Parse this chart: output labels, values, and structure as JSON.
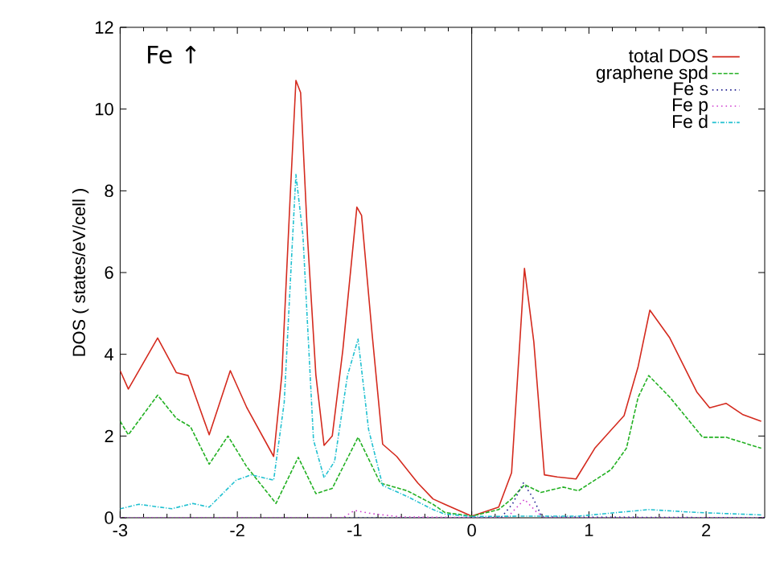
{
  "chart_data": {
    "type": "line",
    "ylabel": "DOS ( states/eV/cell )",
    "annotations": [
      "Fe ↑"
    ],
    "xlim": [
      -3,
      2.5
    ],
    "xticks": [
      -3,
      -2,
      -1,
      0,
      1,
      2
    ],
    "ylim": [
      0,
      12
    ],
    "yticks": [
      0,
      2,
      4,
      6,
      8,
      10,
      12
    ],
    "legend": "top right",
    "marker": "none",
    "ref_lines": [
      {
        "axis": "x",
        "value": 0,
        "color": "#000000"
      }
    ],
    "series": [
      {
        "name": "total DOS",
        "color": "#d42a1e",
        "line_style": "solid",
        "x": [
          -3,
          -2.93,
          -2.68,
          -2.52,
          -2.42,
          -2.24,
          -2.06,
          -1.92,
          -1.69,
          -1.62,
          -1.55,
          -1.5,
          -1.46,
          -1.4,
          -1.33,
          -1.26,
          -1.19,
          -1.1,
          -0.98,
          -0.94,
          -0.85,
          -0.76,
          -0.64,
          -0.46,
          -0.33,
          -0.23,
          0,
          0.23,
          0.34,
          0.45,
          0.53,
          0.62,
          0.73,
          0.89,
          1.05,
          1.3,
          1.42,
          1.52,
          1.69,
          1.92,
          2.03,
          2.17,
          2.31,
          2.47
        ],
        "values": [
          3.6,
          3.15,
          4.4,
          3.55,
          3.48,
          2.03,
          3.6,
          2.7,
          1.5,
          3.5,
          7.8,
          10.7,
          10.4,
          6.8,
          3.5,
          1.77,
          2.0,
          4.1,
          7.6,
          7.4,
          4.5,
          1.8,
          1.5,
          0.85,
          0.46,
          0.33,
          0.04,
          0.26,
          1.1,
          6.1,
          4.3,
          1.05,
          1.0,
          0.95,
          1.7,
          2.5,
          3.7,
          5.08,
          4.4,
          3.08,
          2.69,
          2.8,
          2.53,
          2.36
        ]
      },
      {
        "name": "graphene spd",
        "color": "#22b022",
        "line_style": "dashed",
        "x": [
          -3,
          -2.93,
          -2.68,
          -2.52,
          -2.4,
          -2.24,
          -2.08,
          -1.92,
          -1.67,
          -1.48,
          -1.33,
          -1.19,
          -0.97,
          -0.78,
          -0.55,
          -0.33,
          -0.23,
          0,
          0.23,
          0.34,
          0.45,
          0.59,
          0.78,
          0.91,
          1.19,
          1.32,
          1.42,
          1.51,
          1.69,
          1.97,
          2.17,
          2.47
        ],
        "values": [
          2.36,
          2.03,
          3.0,
          2.43,
          2.23,
          1.31,
          2.0,
          1.25,
          0.35,
          1.48,
          0.59,
          0.72,
          1.97,
          0.85,
          0.66,
          0.33,
          0.13,
          0.04,
          0.2,
          0.46,
          0.81,
          0.62,
          0.75,
          0.66,
          1.18,
          1.7,
          2.95,
          3.48,
          2.95,
          1.97,
          1.97,
          1.7
        ]
      },
      {
        "name": "Fe s",
        "color": "#202090",
        "line_style": "dotted",
        "x": [
          -3,
          0.25,
          0.35,
          0.44,
          0.52,
          0.6,
          2.5
        ],
        "values": [
          0,
          0,
          0.35,
          0.85,
          0.5,
          0.02,
          0
        ]
      },
      {
        "name": "Fe p",
        "color": "#d040d0",
        "line_style": "dotted",
        "x": [
          -3,
          -1.1,
          -1.0,
          -0.85,
          -0.6,
          0.3,
          0.45,
          0.55,
          0.62,
          2.5
        ],
        "values": [
          0,
          0,
          0.18,
          0.1,
          0.02,
          0,
          0.45,
          0.15,
          0,
          0
        ]
      },
      {
        "name": "Fe d",
        "color": "#20c0d0",
        "line_style": "dashdot",
        "x": [
          -3,
          -2.84,
          -2.56,
          -2.38,
          -2.24,
          -2.01,
          -1.88,
          -1.69,
          -1.6,
          -1.53,
          -1.5,
          -1.44,
          -1.35,
          -1.26,
          -1.17,
          -1.06,
          -0.97,
          -0.88,
          -0.76,
          -0.55,
          -0.33,
          -0.23,
          0,
          0.46,
          0.91,
          1.51,
          1.92,
          2.47
        ],
        "values": [
          0.22,
          0.33,
          0.22,
          0.35,
          0.26,
          0.92,
          1.05,
          0.92,
          2.82,
          6.76,
          8.4,
          6.9,
          1.9,
          0.98,
          1.38,
          3.48,
          4.37,
          2.16,
          0.79,
          0.52,
          0.2,
          0.09,
          0.03,
          0.04,
          0.04,
          0.2,
          0.13,
          0.07
        ]
      }
    ]
  }
}
